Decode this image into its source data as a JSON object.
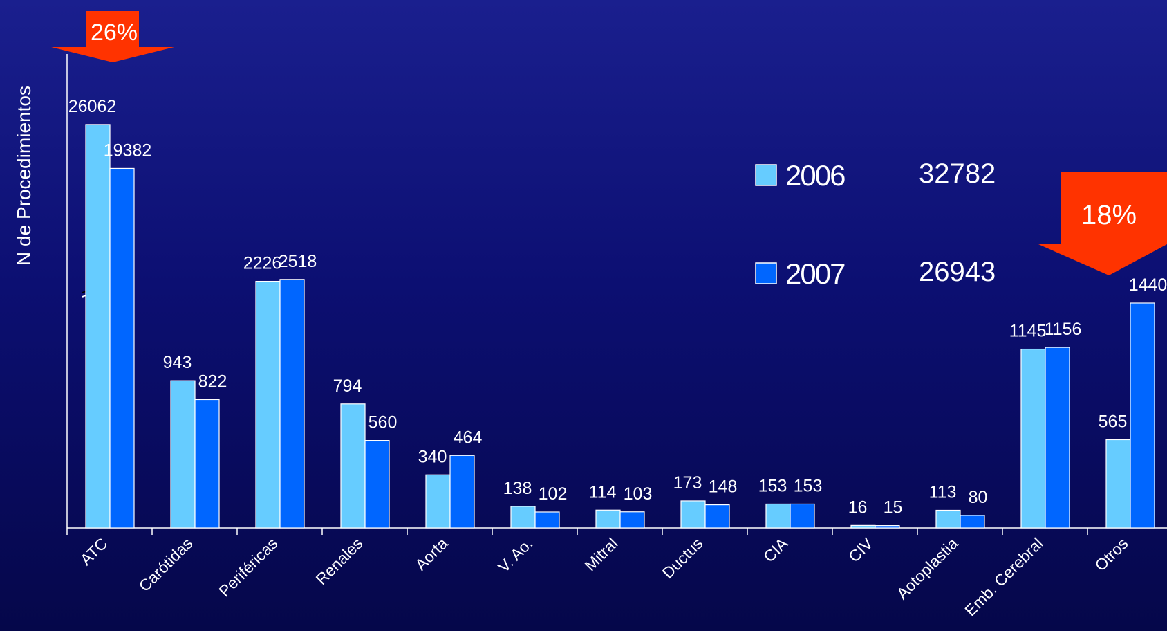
{
  "chart_data": {
    "type": "bar",
    "ylabel": "N de Procedimientos",
    "categories": [
      "ATC",
      "Carótidas",
      "Periféricas",
      "Renales",
      "Aorta",
      "V. Ao.",
      "Mitral",
      "Ductus",
      "CIA",
      "CIV",
      "Aotoplastia",
      "Emb. Cerebral",
      "Otros"
    ],
    "axis_break": true,
    "series": [
      {
        "name": "2006",
        "total": "32782",
        "color": "#66ccff",
        "values": [
          26062,
          943,
          2226,
          794,
          340,
          138,
          114,
          173,
          153,
          16,
          113,
          1145,
          565
        ]
      },
      {
        "name": "2007",
        "total": "26943",
        "color": "#0066ff",
        "values": [
          19382,
          822,
          2518,
          560,
          464,
          102,
          103,
          148,
          153,
          15,
          80,
          1156,
          1440
        ]
      }
    ],
    "callouts": [
      {
        "text": "26%",
        "near": "ATC",
        "direction": "down",
        "color": "#ff3300"
      },
      {
        "text": "18%",
        "near": "legend",
        "direction": "down",
        "color": "#ff3300"
      }
    ]
  }
}
